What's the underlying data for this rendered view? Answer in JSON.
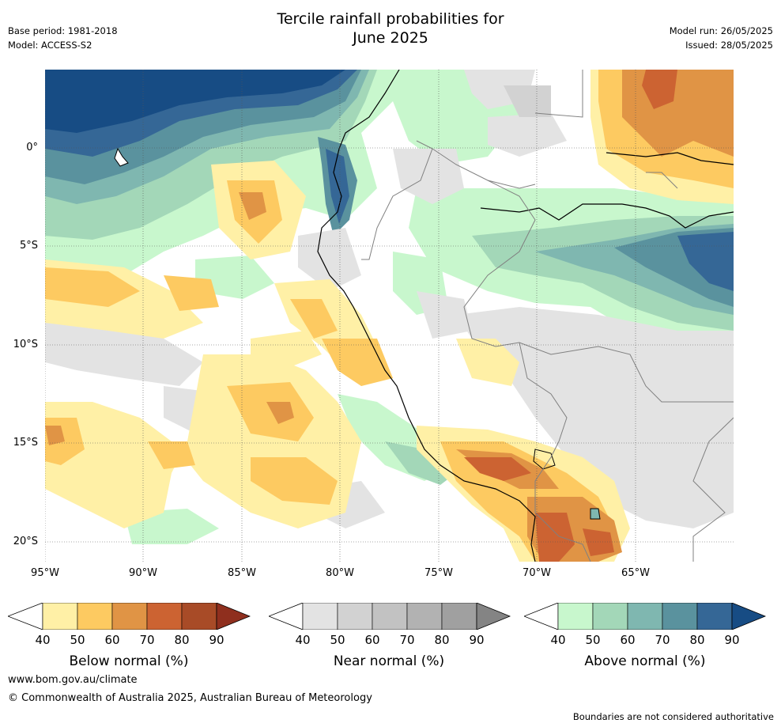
{
  "title": {
    "line1": "Tercile rainfall probabilities for",
    "line2": "June 2025"
  },
  "meta": {
    "base_period": "Base period: 1981-2018",
    "model": "Model: ACCESS-S2",
    "model_run": "Model run: 26/05/2025",
    "issued": "Issued: 28/05/2025"
  },
  "map": {
    "lat_labels": [
      "0°",
      "5°S",
      "10°S",
      "15°S",
      "20°S"
    ],
    "lon_labels": [
      "95°W",
      "90°W",
      "85°W",
      "80°W",
      "75°W",
      "70°W",
      "65°W"
    ],
    "lat_values": [
      0,
      -5,
      -10,
      -15,
      -20
    ],
    "lon_values": [
      -95,
      -90,
      -85,
      -80,
      -75,
      -70,
      -65
    ],
    "extent": {
      "west": -95,
      "east": -60,
      "north": 4,
      "south": -21
    }
  },
  "colorbars": {
    "below": {
      "title": "Below normal (%)",
      "ticks": [
        "40",
        "50",
        "60",
        "70",
        "80",
        "90"
      ],
      "colors": [
        "#fff0a6",
        "#fdca61",
        "#e09445",
        "#cc6332",
        "#a84b27",
        "#8f2f1e"
      ]
    },
    "near": {
      "title": "Near normal (%)",
      "ticks": [
        "40",
        "50",
        "60",
        "70",
        "80",
        "90"
      ],
      "colors": [
        "#e3e3e3",
        "#d2d2d2",
        "#c2c2c2",
        "#b2b2b2",
        "#a0a0a0",
        "#848484"
      ]
    },
    "above": {
      "title": "Above normal (%)",
      "ticks": [
        "40",
        "50",
        "60",
        "70",
        "80",
        "90"
      ],
      "colors": [
        "#c8f7cd",
        "#a3d7b8",
        "#7fb7b0",
        "#5a929e",
        "#356796",
        "#174c84"
      ]
    }
  },
  "footer": {
    "url": "www.bom.gov.au/climate",
    "copyright": "© Commonwealth of Australia 2025, Australian Bureau of Meteorology",
    "note": "Boundaries are not considered authoritative"
  }
}
